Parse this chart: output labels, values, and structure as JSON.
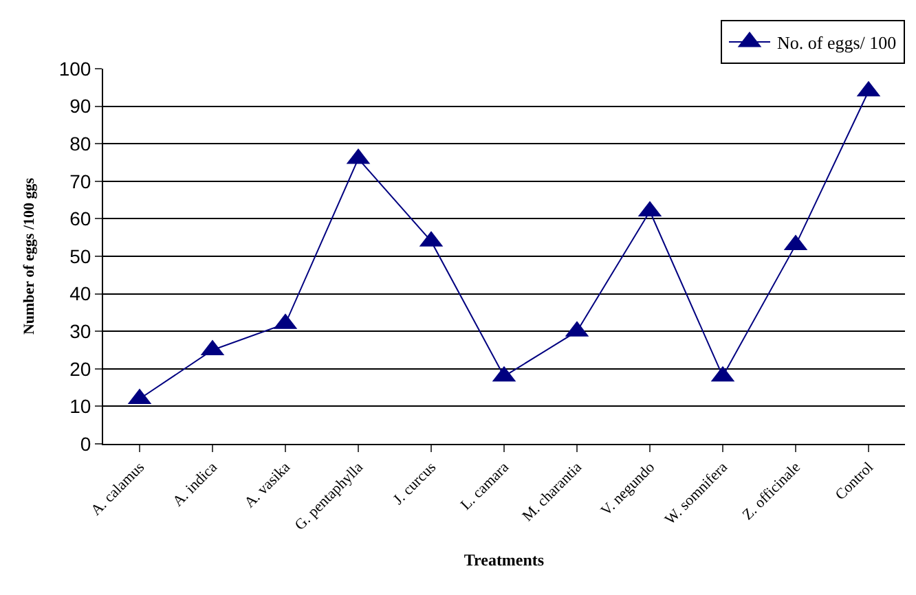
{
  "chart_data": {
    "type": "line",
    "xlabel": "Treatments",
    "ylabel": "Number of eggs /100 ggs",
    "categories": [
      "A. calamus",
      "A. indica",
      "A. vasika",
      "G. pentaphylla",
      "J. curcus",
      "L. camara",
      "M. charantia",
      "V. negundo",
      "W. somnifera",
      "Z. officinale",
      "Control"
    ],
    "series": [
      {
        "name": "No. of eggs/ 100",
        "color": "#000080",
        "values": [
          12,
          25,
          32,
          76,
          54,
          18,
          30,
          62,
          18,
          53,
          94
        ]
      }
    ],
    "ylim": [
      0,
      100
    ],
    "yticks": [
      0,
      10,
      20,
      30,
      40,
      50,
      60,
      70,
      80,
      90,
      100
    ],
    "grid": "y",
    "legend": "top right",
    "marker": "triangle",
    "line_style": "solid"
  }
}
